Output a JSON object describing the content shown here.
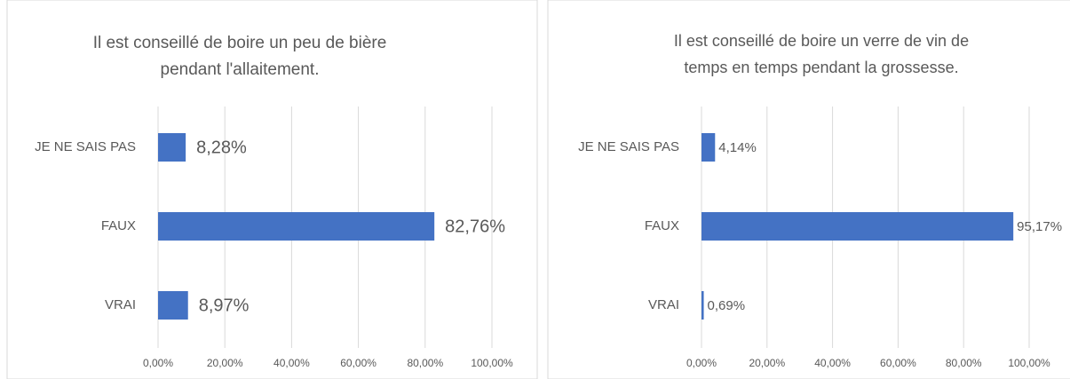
{
  "chart_data": [
    {
      "type": "bar",
      "orientation": "horizontal",
      "title": [
        "Il est conseillé de boire un peu de bière",
        "pendant l'allaitement."
      ],
      "categories": [
        "JE NE SAIS PAS",
        "FAUX",
        "VRAI"
      ],
      "values": [
        8.28,
        82.76,
        8.97
      ],
      "value_labels": [
        "8,28%",
        "82,76%",
        "8,97%"
      ],
      "color": "#4472c4",
      "xlim": [
        0,
        100
      ],
      "xticks": [
        {
          "value": 0,
          "label": "0,00%"
        },
        {
          "value": 20,
          "label": "20,00%"
        },
        {
          "value": 40,
          "label": "40,00%"
        },
        {
          "value": 60,
          "label": "60,00%"
        },
        {
          "value": 80,
          "label": "80,00%"
        },
        {
          "value": 100,
          "label": "100,00%"
        }
      ],
      "grid": true
    },
    {
      "type": "bar",
      "orientation": "horizontal",
      "title": [
        "Il est conseillé de boire un verre de vin de",
        "temps en temps pendant la grossesse."
      ],
      "categories": [
        "JE NE SAIS PAS",
        "FAUX",
        "VRAI"
      ],
      "values": [
        4.14,
        95.17,
        0.69
      ],
      "value_labels": [
        "4,14%",
        "95,17%",
        "0,69%"
      ],
      "color": "#4472c4",
      "xlim": [
        0,
        100
      ],
      "xticks": [
        {
          "value": 0,
          "label": "0,00%"
        },
        {
          "value": 20,
          "label": "20,00%"
        },
        {
          "value": 40,
          "label": "40,00%"
        },
        {
          "value": 60,
          "label": "60,00%"
        },
        {
          "value": 80,
          "label": "80,00%"
        },
        {
          "value": 100,
          "label": "100,00%"
        }
      ],
      "grid": true
    }
  ]
}
